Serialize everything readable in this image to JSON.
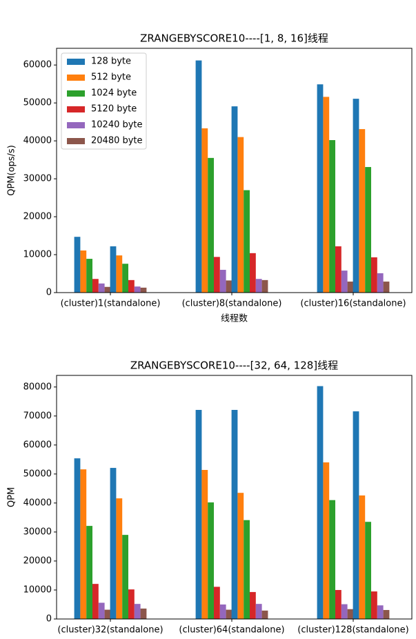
{
  "chart_data": [
    {
      "type": "bar",
      "title": "ZRANGEBYSCORE10----[1, 8, 16]线程",
      "xlabel": "线程数",
      "ylabel": "QPM(ops/s)",
      "categories": [
        "(cluster)1(standalone)",
        "(cluster)8(standalone)",
        "(cluster)16(standalone)"
      ],
      "series": [
        {
          "name": "128 byte",
          "color": "#1f77b4",
          "values": [
            [
              14700,
              12200
            ],
            [
              61200,
              49100
            ],
            [
              54900,
              51100
            ]
          ]
        },
        {
          "name": "512 byte",
          "color": "#ff7f0e",
          "values": [
            [
              11100,
              9800
            ],
            [
              43300,
              41000
            ],
            [
              51600,
              43100
            ]
          ]
        },
        {
          "name": "1024 byte",
          "color": "#2ca02c",
          "values": [
            [
              8900,
              7600
            ],
            [
              35500,
              27000
            ],
            [
              40200,
              33100
            ]
          ]
        },
        {
          "name": "5120 byte",
          "color": "#d62728",
          "values": [
            [
              3600,
              3300
            ],
            [
              9400,
              10400
            ],
            [
              12200,
              9300
            ]
          ]
        },
        {
          "name": "10240 byte",
          "color": "#9467bd",
          "values": [
            [
              2400,
              1600
            ],
            [
              6000,
              3600
            ],
            [
              5800,
              5100
            ]
          ]
        },
        {
          "name": "20480 byte",
          "color": "#8c564b",
          "values": [
            [
              1500,
              1300
            ],
            [
              3200,
              3300
            ],
            [
              2900,
              2900
            ]
          ]
        }
      ],
      "ylim": [
        0,
        64400
      ],
      "yticks": [
        0,
        10000,
        20000,
        30000,
        40000,
        50000,
        60000
      ],
      "legend": "upper left"
    },
    {
      "type": "bar",
      "title": "ZRANGEBYSCORE10----[32, 64, 128]线程",
      "ylabel": "QPM",
      "categories": [
        "(cluster)32(standalone)",
        "(cluster)64(standalone)",
        "(cluster)128(standalone)"
      ],
      "series": [
        {
          "name": "128 byte",
          "color": "#1f77b4",
          "values": [
            [
              55400,
              52100
            ],
            [
              72100,
              72100
            ],
            [
              80300,
              71600
            ]
          ]
        },
        {
          "name": "512 byte",
          "color": "#ff7f0e",
          "values": [
            [
              51600,
              41600
            ],
            [
              51400,
              43500
            ],
            [
              54000,
              42600
            ]
          ]
        },
        {
          "name": "1024 byte",
          "color": "#2ca02c",
          "values": [
            [
              32100,
              29000
            ],
            [
              40200,
              34100
            ],
            [
              41000,
              33500
            ]
          ]
        },
        {
          "name": "5120 byte",
          "color": "#d62728",
          "values": [
            [
              12100,
              10200
            ],
            [
              11100,
              9300
            ],
            [
              10000,
              9500
            ]
          ]
        },
        {
          "name": "10240 byte",
          "color": "#9467bd",
          "values": [
            [
              5600,
              5200
            ],
            [
              5000,
              5200
            ],
            [
              5100,
              4700
            ]
          ]
        },
        {
          "name": "20480 byte",
          "color": "#8c564b",
          "values": [
            [
              3200,
              3600
            ],
            [
              3200,
              2900
            ],
            [
              3400,
              3100
            ]
          ]
        }
      ],
      "ylim": [
        0,
        84000
      ],
      "yticks": [
        0,
        10000,
        20000,
        30000,
        40000,
        50000,
        60000,
        70000,
        80000
      ]
    }
  ]
}
